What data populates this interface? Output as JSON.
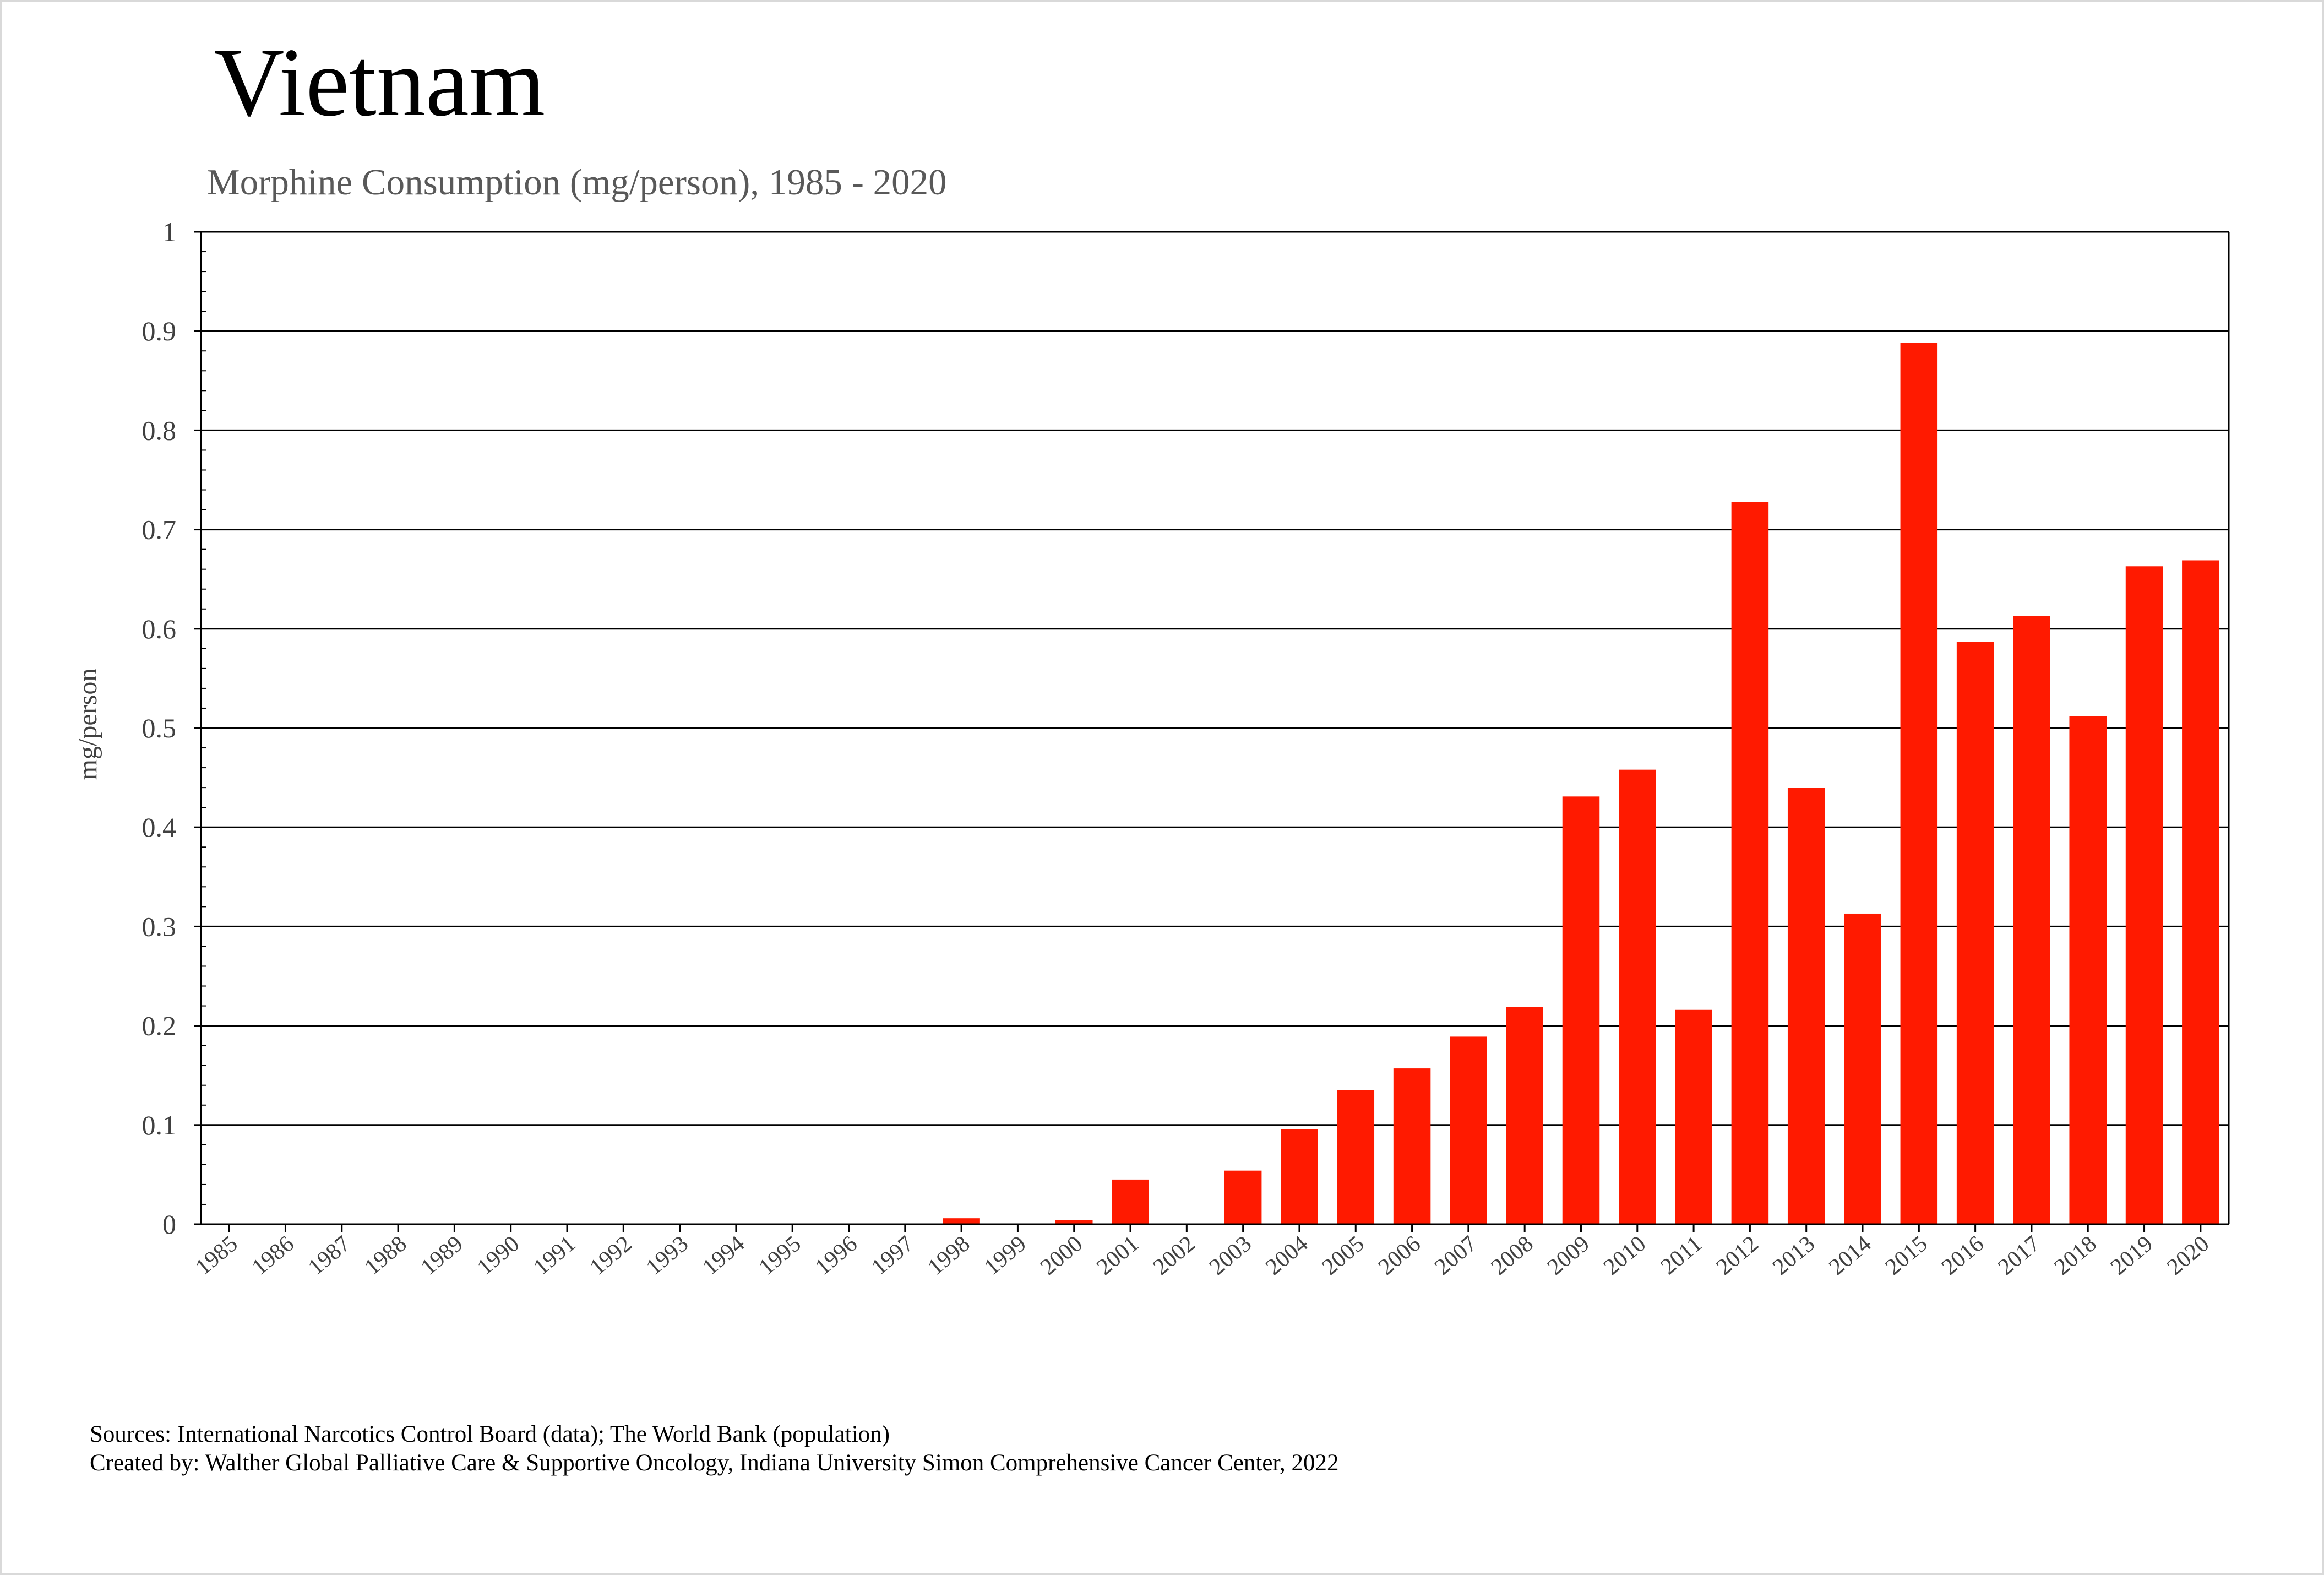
{
  "chart_data": {
    "type": "bar",
    "title": "Vietnam",
    "subtitle": "Morphine Consumption (mg/person), 1985 - 2020",
    "xlabel": "",
    "ylabel": "mg/person",
    "ylim": [
      0,
      1
    ],
    "yticks": [
      "0",
      "0.1",
      "0.2",
      "0.3",
      "0.4",
      "0.5",
      "0.6",
      "0.7",
      "0.8",
      "0.9",
      "1"
    ],
    "grid": true,
    "bar_color": "#ff1a00",
    "categories": [
      "1985",
      "1986",
      "1987",
      "1988",
      "1989",
      "1990",
      "1991",
      "1992",
      "1993",
      "1994",
      "1995",
      "1996",
      "1997",
      "1998",
      "1999",
      "2000",
      "2001",
      "2002",
      "2003",
      "2004",
      "2005",
      "2006",
      "2007",
      "2008",
      "2009",
      "2010",
      "2011",
      "2012",
      "2013",
      "2014",
      "2015",
      "2016",
      "2017",
      "2018",
      "2019",
      "2020"
    ],
    "values": [
      0,
      0,
      0,
      0,
      0,
      0,
      0,
      0,
      0,
      0,
      0,
      0,
      0,
      0.006,
      0,
      0.004,
      0.045,
      0,
      0.054,
      0.096,
      0.135,
      0.157,
      0.189,
      0.219,
      0.431,
      0.458,
      0.216,
      0.728,
      0.44,
      0.313,
      0.888,
      0.587,
      0.613,
      0.512,
      0.663,
      0.669
    ]
  },
  "footer": {
    "sources": "Sources: International Narcotics Control Board (data); The World Bank (population)",
    "created": "Created by: Walther  Global Palliative Care & Supportive Oncology, Indiana University Simon Comprehensive Cancer Center, 2022"
  }
}
